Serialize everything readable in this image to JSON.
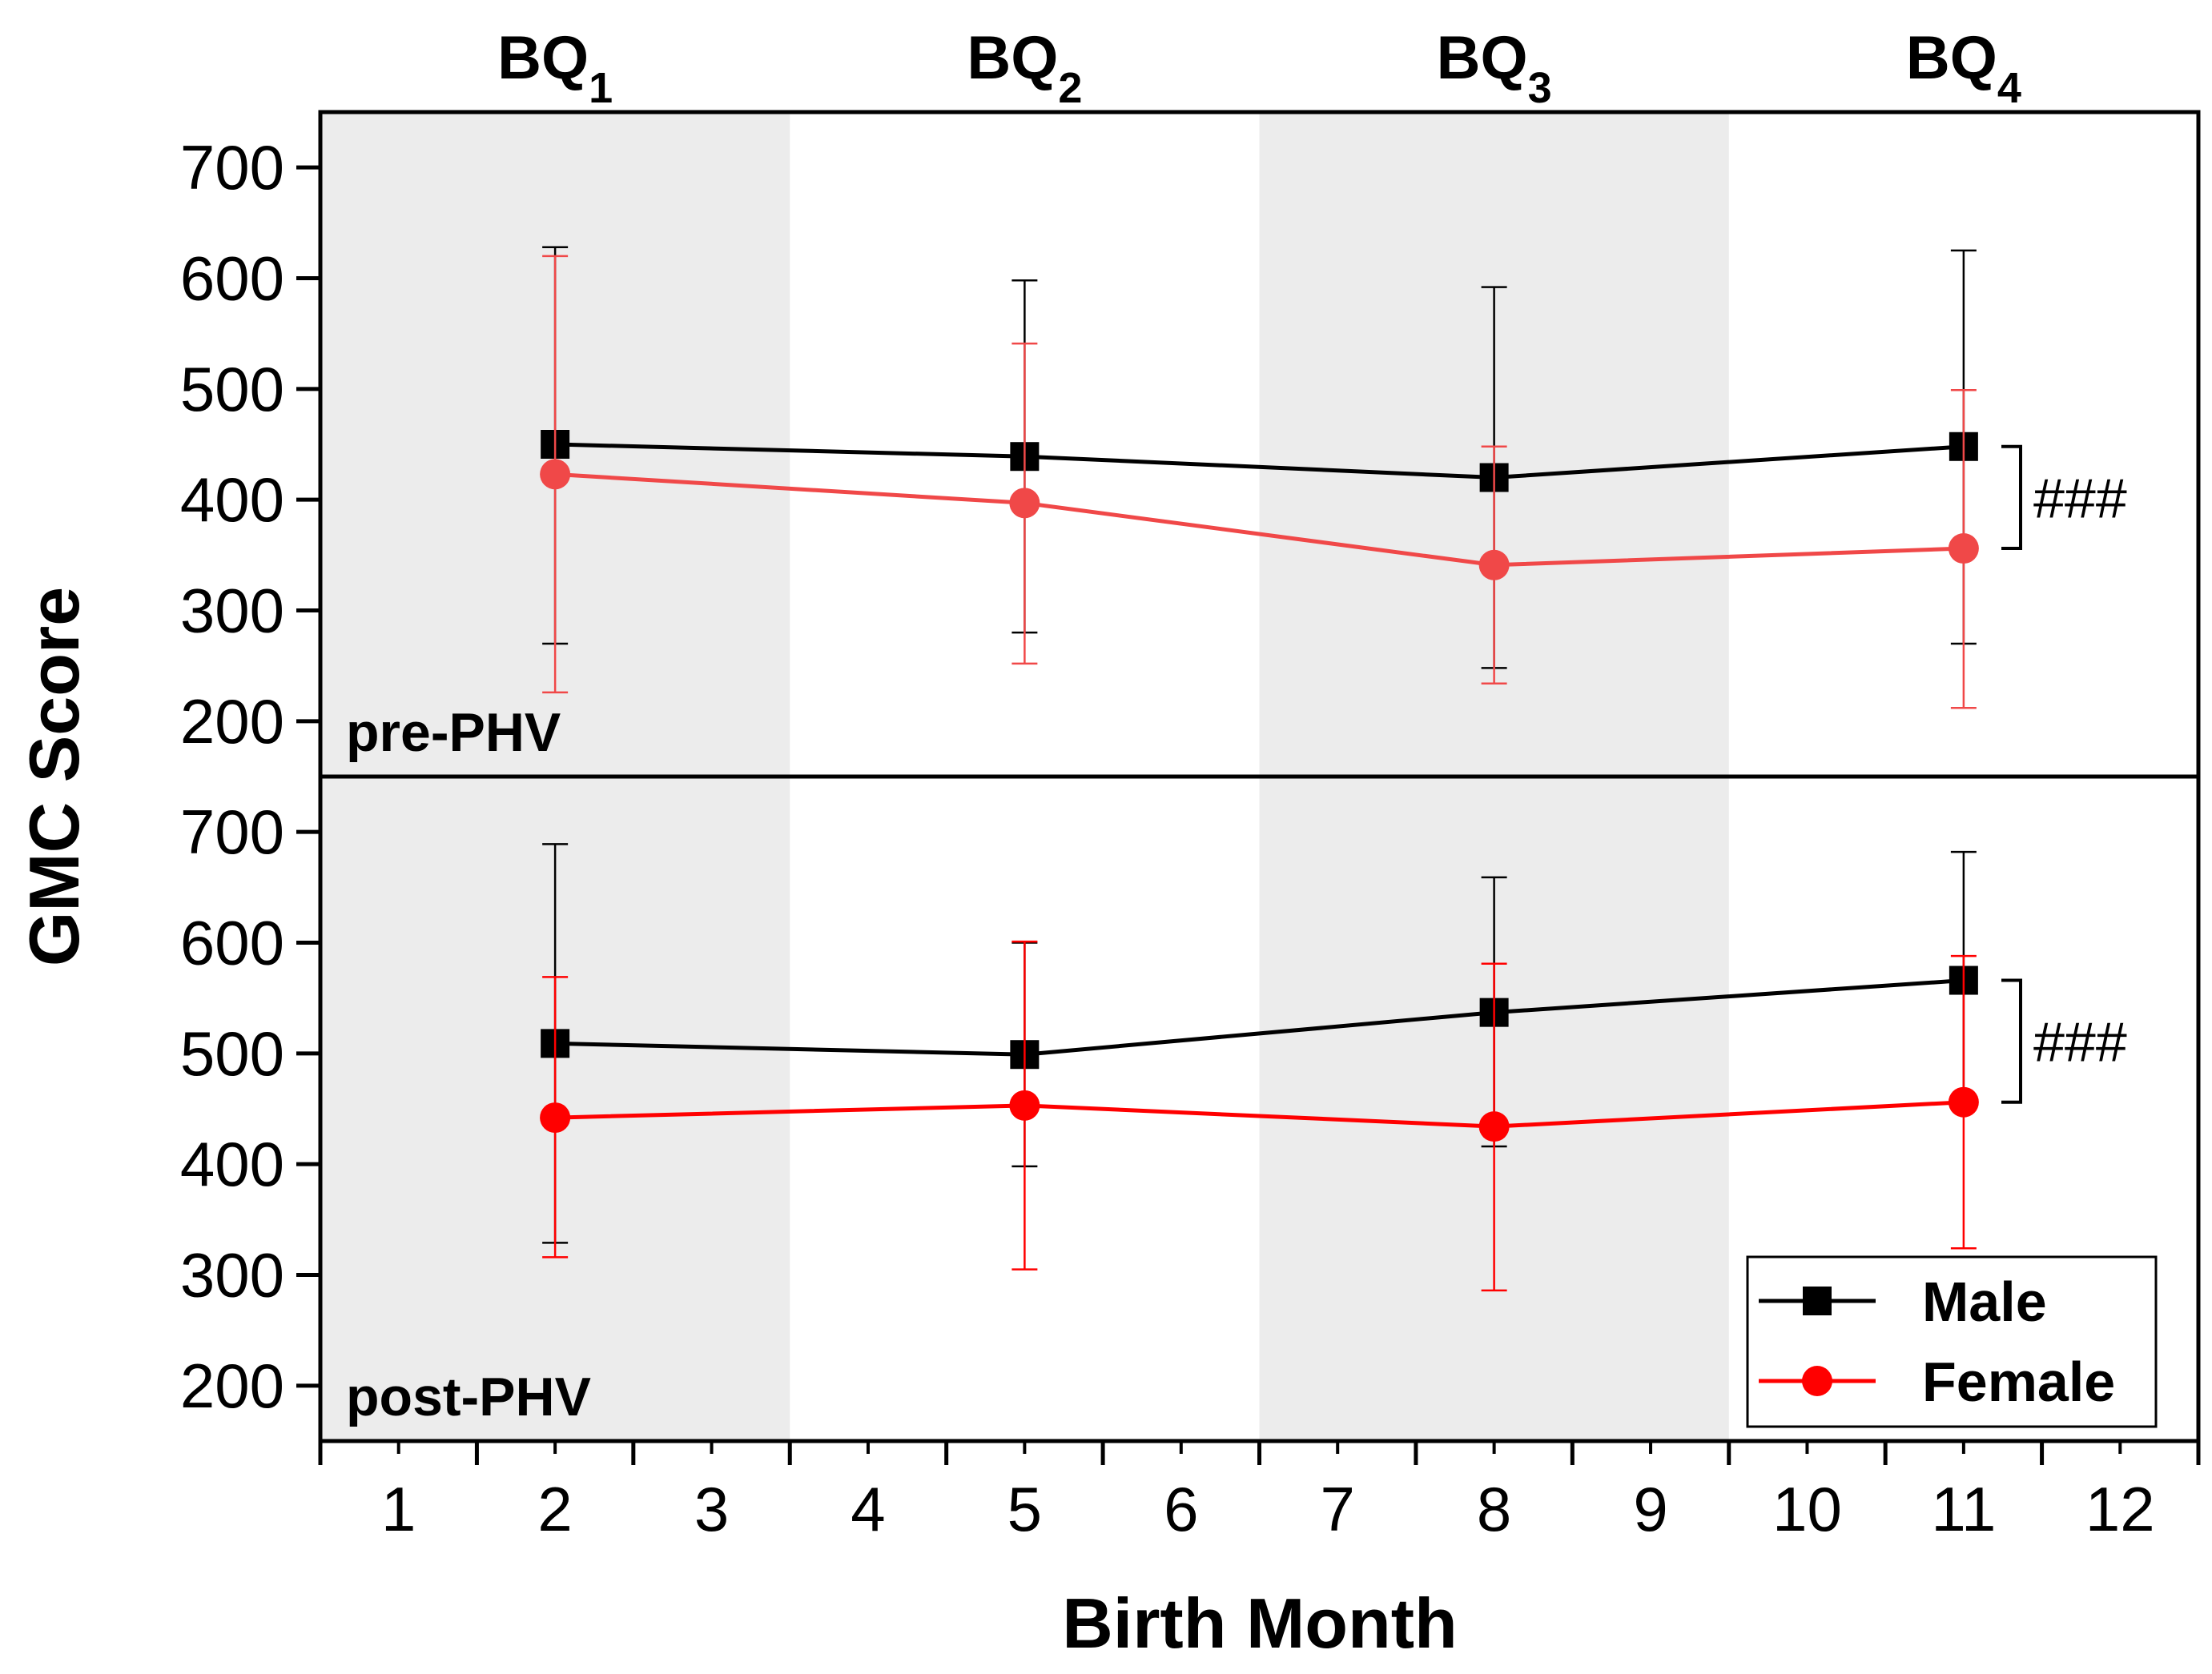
{
  "chart_data": {
    "type": "line",
    "xlabel": "Birth Month",
    "ylabel": "GMC Score",
    "xlim": [
      0.5,
      12.5
    ],
    "x_ticks": [
      1,
      2,
      3,
      4,
      5,
      6,
      7,
      8,
      9,
      10,
      11,
      12
    ],
    "quarters": [
      {
        "base": "BQ",
        "sub": "1",
        "from": 0.5,
        "to": 3.5,
        "shaded": true
      },
      {
        "base": "BQ",
        "sub": "2",
        "from": 3.5,
        "to": 6.5,
        "shaded": false
      },
      {
        "base": "BQ",
        "sub": "3",
        "from": 6.5,
        "to": 9.5,
        "shaded": true
      },
      {
        "base": "BQ",
        "sub": "4",
        "from": 9.5,
        "to": 12.5,
        "shaded": false
      }
    ],
    "legend": [
      {
        "name": "Male",
        "color": "#000000",
        "marker": "square"
      },
      {
        "name": "Female",
        "color": "#ff0000",
        "marker": "circle"
      }
    ],
    "panels": [
      {
        "label": "pre-PHV",
        "ylim": [
          150,
          750
        ],
        "y_ticks": [
          200,
          300,
          400,
          500,
          600,
          700
        ],
        "significance": "###",
        "series": [
          {
            "name": "Male",
            "color": "#000000",
            "marker": "square",
            "x": [
              2,
              5,
              8,
              11
            ],
            "y": [
              450,
              439,
              420,
              448
            ],
            "err_low": [
              270,
              280,
              248,
              270
            ],
            "err_high": [
              628,
              598,
              592,
              625
            ]
          },
          {
            "name": "Female",
            "color": "#f04848",
            "marker": "circle",
            "x": [
              2,
              5,
              8,
              11
            ],
            "y": [
              423,
              397,
              341,
              356
            ],
            "err_low": [
              226,
              252,
              234,
              212
            ],
            "err_high": [
              620,
              541,
              448,
              499
            ]
          }
        ]
      },
      {
        "label": "post-PHV",
        "ylim": [
          150,
          750
        ],
        "y_ticks": [
          200,
          300,
          400,
          500,
          600,
          700
        ],
        "significance": "###",
        "series": [
          {
            "name": "Male",
            "color": "#000000",
            "marker": "square",
            "x": [
              2,
              5,
              8,
              11
            ],
            "y": [
              509,
              499,
              537,
              566
            ],
            "err_low": [
              329,
              398,
              416,
              450
            ],
            "err_high": [
              689,
              600,
              659,
              682
            ]
          },
          {
            "name": "Female",
            "color": "#ff0000",
            "marker": "circle",
            "x": [
              2,
              5,
              8,
              11
            ],
            "y": [
              442,
              453,
              434,
              456
            ],
            "err_low": [
              316,
              305,
              286,
              324
            ],
            "err_high": [
              569,
              601,
              581,
              588
            ]
          }
        ]
      }
    ]
  }
}
